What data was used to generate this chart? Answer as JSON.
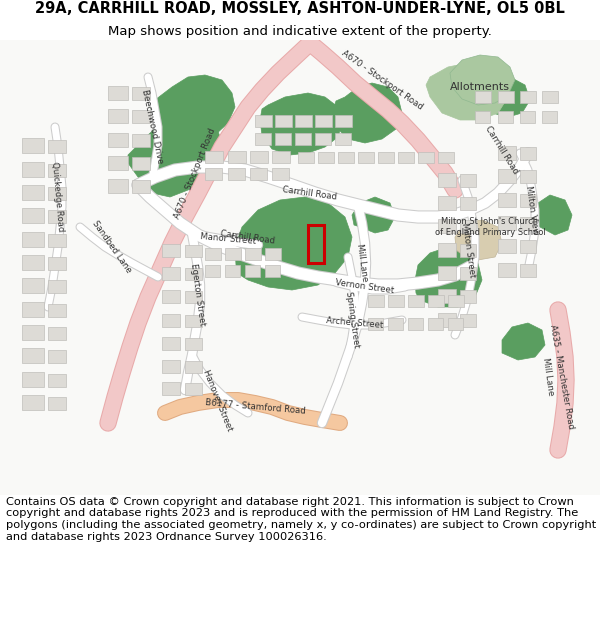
{
  "title_line1": "29A, CARRHILL ROAD, MOSSLEY, ASHTON-UNDER-LYNE, OL5 0BL",
  "title_line2": "Map shows position and indicative extent of the property.",
  "footer": "Contains OS data © Crown copyright and database right 2021. This information is subject to Crown copyright and database rights 2023 and is reproduced with the permission of HM Land Registry. The polygons (including the associated geometry, namely x, y co-ordinates) are subject to Crown copyright and database rights 2023 Ordnance Survey 100026316.",
  "bg_color": "#f9f9f7",
  "road_major_fill": "#f2c8c8",
  "road_major_edge": "#e8aaaa",
  "road_b6177_fill": "#f5c8a0",
  "road_b6177_edge": "#e0aa80",
  "road_minor_fill": "#ffffff",
  "road_minor_edge": "#cccccc",
  "green_dark": "#5a9e60",
  "green_light": "#aac8a0",
  "building_fill": "#dddbd6",
  "building_edge": "#c0beba",
  "beige_fill": "#d8cdb0",
  "beige_edge": "#c0b598",
  "highlight_red": "#cc0000",
  "title_fontsize": 10.5,
  "subtitle_fontsize": 9.5,
  "label_fontsize": 6.2,
  "footer_fontsize": 8.2
}
